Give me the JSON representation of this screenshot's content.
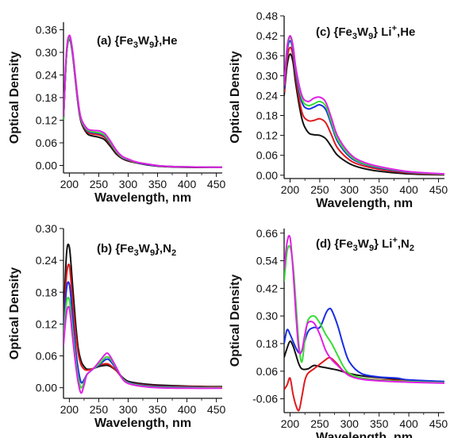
{
  "figure": {
    "colors": {
      "black": "#111111",
      "red": "#e0191d",
      "blue": "#1a2ee6",
      "green": "#35dd35",
      "magenta": "#e020e6"
    }
  },
  "chart_data": [
    {
      "type": "line",
      "panel": "a",
      "title": "(a) {Fe3W9},He",
      "title_parts": {
        "prefix": "(a) {Fe",
        "sub1": "3",
        "mid": "W",
        "sub2": "9",
        "sup": "",
        "suffix": "},He",
        "sub3": ""
      },
      "xlabel": "Wavelength, nm",
      "ylabel": "Optical Density",
      "xlim": [
        190,
        460
      ],
      "ylim": [
        -0.02,
        0.38
      ],
      "xticks": [
        200,
        250,
        300,
        350,
        400,
        450
      ],
      "yticks": [
        "0.00",
        "0.06",
        "0.12",
        "0.18",
        "0.24",
        "0.30",
        "0.36"
      ],
      "series": [
        {
          "color": "black",
          "x": [
            190,
            195,
            200,
            205,
            210,
            215,
            220,
            230,
            240,
            250,
            260,
            270,
            280,
            290,
            300,
            310,
            320,
            340,
            360,
            400,
            460
          ],
          "y": [
            0.12,
            0.29,
            0.335,
            0.3,
            0.23,
            0.16,
            0.115,
            0.085,
            0.078,
            0.075,
            0.068,
            0.05,
            0.03,
            0.018,
            0.012,
            0.008,
            0.005,
            0.0,
            -0.003,
            -0.005,
            -0.005
          ]
        },
        {
          "color": "red",
          "x": [
            190,
            195,
            200,
            205,
            210,
            215,
            220,
            230,
            240,
            250,
            260,
            270,
            280,
            290,
            300,
            310,
            320,
            340,
            360,
            400,
            460
          ],
          "y": [
            0.12,
            0.29,
            0.337,
            0.302,
            0.232,
            0.163,
            0.118,
            0.09,
            0.083,
            0.081,
            0.074,
            0.055,
            0.034,
            0.02,
            0.014,
            0.009,
            0.006,
            0.001,
            -0.002,
            -0.004,
            -0.005
          ]
        },
        {
          "color": "blue",
          "x": [
            190,
            195,
            200,
            205,
            210,
            215,
            220,
            230,
            240,
            250,
            260,
            270,
            280,
            290,
            300,
            310,
            320,
            340,
            360,
            400,
            460
          ],
          "y": [
            0.12,
            0.29,
            0.338,
            0.303,
            0.234,
            0.165,
            0.12,
            0.093,
            0.087,
            0.085,
            0.078,
            0.058,
            0.036,
            0.021,
            0.015,
            0.01,
            0.006,
            0.001,
            -0.002,
            -0.004,
            -0.005
          ]
        },
        {
          "color": "green",
          "x": [
            190,
            195,
            200,
            205,
            210,
            215,
            220,
            230,
            240,
            250,
            260,
            270,
            280,
            290,
            300,
            310,
            320,
            340,
            360,
            400,
            460
          ],
          "y": [
            0.12,
            0.29,
            0.34,
            0.305,
            0.236,
            0.167,
            0.122,
            0.095,
            0.089,
            0.087,
            0.08,
            0.06,
            0.037,
            0.022,
            0.016,
            0.01,
            0.007,
            0.002,
            -0.002,
            -0.004,
            -0.005
          ]
        },
        {
          "color": "magenta",
          "x": [
            190,
            195,
            200,
            205,
            210,
            215,
            220,
            230,
            240,
            250,
            260,
            270,
            280,
            290,
            300,
            310,
            320,
            340,
            360,
            400,
            460
          ],
          "y": [
            0.13,
            0.3,
            0.345,
            0.31,
            0.24,
            0.17,
            0.125,
            0.098,
            0.093,
            0.092,
            0.085,
            0.064,
            0.04,
            0.024,
            0.017,
            0.011,
            0.007,
            0.002,
            -0.002,
            -0.004,
            -0.005
          ]
        }
      ]
    },
    {
      "type": "line",
      "panel": "c",
      "title": "(c) {Fe3W9} Li+,He",
      "title_parts": {
        "prefix": "(c) {Fe",
        "sub1": "3",
        "mid": "W",
        "sub2": "9",
        "suffix": "} Li",
        "sup": "+",
        "suffix2": ",He",
        "sub3": ""
      },
      "xlabel": "Wavelength, nm",
      "ylabel": "Optical Density",
      "xlim": [
        190,
        460
      ],
      "ylim": [
        -0.01,
        0.48
      ],
      "xticks": [
        200,
        250,
        300,
        350,
        400,
        450
      ],
      "yticks": [
        "0.00",
        "0.06",
        "0.12",
        "0.18",
        "0.24",
        "0.30",
        "0.36",
        "0.42",
        "0.48"
      ],
      "series": [
        {
          "color": "black",
          "x": [
            190,
            195,
            200,
            205,
            210,
            220,
            230,
            240,
            250,
            260,
            270,
            280,
            300,
            320,
            350,
            400,
            460
          ],
          "y": [
            0.24,
            0.33,
            0.365,
            0.34,
            0.27,
            0.17,
            0.13,
            0.122,
            0.12,
            0.11,
            0.085,
            0.06,
            0.035,
            0.022,
            0.012,
            0.004,
            0.001
          ]
        },
        {
          "color": "red",
          "x": [
            190,
            195,
            200,
            205,
            210,
            220,
            230,
            240,
            250,
            260,
            270,
            280,
            300,
            320,
            350,
            400,
            460
          ],
          "y": [
            0.25,
            0.35,
            0.385,
            0.36,
            0.29,
            0.19,
            0.165,
            0.165,
            0.17,
            0.158,
            0.12,
            0.082,
            0.046,
            0.03,
            0.018,
            0.007,
            0.002
          ]
        },
        {
          "color": "blue",
          "x": [
            190,
            195,
            200,
            205,
            210,
            220,
            230,
            240,
            250,
            260,
            270,
            280,
            300,
            320,
            350,
            400,
            460
          ],
          "y": [
            0.26,
            0.37,
            0.405,
            0.375,
            0.305,
            0.22,
            0.2,
            0.205,
            0.212,
            0.198,
            0.15,
            0.102,
            0.056,
            0.036,
            0.022,
            0.009,
            0.003
          ]
        },
        {
          "color": "green",
          "x": [
            190,
            195,
            200,
            205,
            210,
            220,
            230,
            240,
            250,
            260,
            270,
            280,
            300,
            320,
            350,
            400,
            460
          ],
          "y": [
            0.27,
            0.38,
            0.415,
            0.385,
            0.315,
            0.23,
            0.21,
            0.215,
            0.222,
            0.208,
            0.158,
            0.108,
            0.06,
            0.038,
            0.024,
            0.01,
            0.003
          ]
        },
        {
          "color": "magenta",
          "x": [
            190,
            195,
            200,
            205,
            210,
            220,
            230,
            240,
            250,
            260,
            270,
            280,
            300,
            320,
            350,
            400,
            460
          ],
          "y": [
            0.27,
            0.385,
            0.42,
            0.39,
            0.32,
            0.24,
            0.222,
            0.232,
            0.235,
            0.22,
            0.17,
            0.118,
            0.066,
            0.042,
            0.026,
            0.011,
            0.004
          ]
        }
      ]
    },
    {
      "type": "line",
      "panel": "b",
      "title": "(b) {Fe3W9},N2",
      "title_parts": {
        "prefix": "(b) {Fe",
        "sub1": "3",
        "mid": "W",
        "sub2": "9",
        "sup": "",
        "suffix": "},N",
        "sub3": "2"
      },
      "xlabel": "Wavelength, nm",
      "ylabel": "Optical Density",
      "xlim": [
        190,
        460
      ],
      "ylim": [
        -0.02,
        0.3
      ],
      "xticks": [
        200,
        250,
        300,
        350,
        400,
        450
      ],
      "yticks": [
        "0.00",
        "0.06",
        "0.12",
        "0.18",
        "0.24",
        "0.30"
      ],
      "series": [
        {
          "color": "black",
          "x": [
            190,
            195,
            200,
            205,
            210,
            215,
            220,
            225,
            230,
            240,
            250,
            260,
            265,
            270,
            280,
            290,
            300,
            320,
            350,
            400,
            460
          ],
          "y": [
            0.12,
            0.25,
            0.265,
            0.2,
            0.13,
            0.075,
            0.05,
            0.04,
            0.035,
            0.036,
            0.04,
            0.042,
            0.042,
            0.04,
            0.032,
            0.02,
            0.012,
            0.008,
            0.005,
            0.003,
            0.002
          ]
        },
        {
          "color": "red",
          "x": [
            190,
            195,
            200,
            205,
            210,
            215,
            220,
            225,
            230,
            240,
            250,
            260,
            265,
            270,
            280,
            290,
            300,
            320,
            350,
            400,
            460
          ],
          "y": [
            0.11,
            0.21,
            0.23,
            0.17,
            0.11,
            0.065,
            0.043,
            0.035,
            0.033,
            0.036,
            0.042,
            0.045,
            0.045,
            0.042,
            0.032,
            0.018,
            0.01,
            0.006,
            0.003,
            0.002,
            0.001
          ]
        },
        {
          "color": "blue",
          "x": [
            190,
            195,
            200,
            205,
            210,
            215,
            220,
            225,
            230,
            240,
            250,
            260,
            265,
            270,
            280,
            290,
            300,
            320,
            350,
            400,
            460
          ],
          "y": [
            0.1,
            0.185,
            0.195,
            0.14,
            0.08,
            0.035,
            0.01,
            0.015,
            0.025,
            0.035,
            0.042,
            0.052,
            0.054,
            0.05,
            0.035,
            0.018,
            0.01,
            0.005,
            0.002,
            0.001,
            0.0
          ]
        },
        {
          "color": "green",
          "x": [
            190,
            195,
            200,
            205,
            210,
            215,
            220,
            225,
            230,
            240,
            250,
            260,
            265,
            270,
            280,
            290,
            300,
            320,
            350,
            400,
            460
          ],
          "y": [
            0.09,
            0.16,
            0.165,
            0.115,
            0.06,
            0.02,
            0.0,
            0.01,
            0.025,
            0.035,
            0.044,
            0.056,
            0.058,
            0.054,
            0.037,
            0.018,
            0.009,
            0.004,
            0.001,
            0.0,
            0.0
          ]
        },
        {
          "color": "magenta",
          "x": [
            190,
            195,
            200,
            205,
            210,
            215,
            220,
            225,
            230,
            240,
            250,
            260,
            265,
            270,
            280,
            290,
            300,
            320,
            350,
            400,
            460
          ],
          "y": [
            0.08,
            0.14,
            0.15,
            0.1,
            0.05,
            0.01,
            -0.01,
            0.005,
            0.025,
            0.035,
            0.048,
            0.062,
            0.065,
            0.058,
            0.038,
            0.017,
            0.008,
            0.003,
            0.0,
            -0.001,
            -0.001
          ]
        }
      ]
    },
    {
      "type": "line",
      "panel": "d",
      "title": "(d) {Fe3W9} Li+,N2",
      "title_parts": {
        "prefix": "(d) {Fe",
        "sub1": "3",
        "mid": "W",
        "sub2": "9",
        "suffix": "} Li",
        "sup": "+",
        "suffix2": ",N",
        "sub3": "2"
      },
      "xlabel": "Wavelength, nm",
      "ylabel": "Optical Density",
      "xlim": [
        190,
        460
      ],
      "ylim": [
        -0.12,
        0.68
      ],
      "xticks": [
        200,
        250,
        300,
        350,
        400,
        450
      ],
      "yticks": [
        "-0.06",
        "0.06",
        "0.18",
        "0.30",
        "0.42",
        "0.54",
        "0.66"
      ],
      "series": [
        {
          "color": "black",
          "x": [
            190,
            195,
            200,
            205,
            210,
            215,
            220,
            230,
            240,
            250,
            260,
            270,
            280,
            300,
            320,
            350,
            380,
            400,
            460
          ],
          "y": [
            0.12,
            0.16,
            0.19,
            0.17,
            0.13,
            0.09,
            0.07,
            0.07,
            0.085,
            0.08,
            0.075,
            0.07,
            0.065,
            0.05,
            0.04,
            0.032,
            0.025,
            0.02,
            0.015
          ]
        },
        {
          "color": "red",
          "x": [
            190,
            195,
            200,
            205,
            210,
            215,
            220,
            225,
            230,
            240,
            250,
            260,
            265,
            270,
            280,
            290,
            300,
            320,
            350,
            400,
            460
          ],
          "y": [
            -0.02,
            0.0,
            0.03,
            -0.04,
            -0.09,
            -0.11,
            -0.05,
            0.02,
            0.05,
            0.07,
            0.09,
            0.11,
            0.118,
            0.115,
            0.09,
            0.06,
            0.045,
            0.03,
            0.022,
            0.018,
            0.012
          ]
        },
        {
          "color": "blue",
          "x": [
            190,
            195,
            200,
            205,
            210,
            215,
            220,
            230,
            240,
            250,
            260,
            265,
            270,
            280,
            290,
            300,
            320,
            350,
            380,
            400,
            460
          ],
          "y": [
            0.18,
            0.24,
            0.22,
            0.19,
            0.16,
            0.14,
            0.15,
            0.23,
            0.25,
            0.25,
            0.31,
            0.33,
            0.325,
            0.26,
            0.17,
            0.1,
            0.05,
            0.035,
            0.03,
            0.022,
            0.015
          ]
        },
        {
          "color": "green",
          "x": [
            190,
            195,
            200,
            205,
            210,
            215,
            220,
            225,
            230,
            240,
            250,
            260,
            270,
            280,
            290,
            300,
            320,
            350,
            400,
            460
          ],
          "y": [
            0.45,
            0.58,
            0.6,
            0.52,
            0.35,
            0.17,
            0.1,
            0.2,
            0.28,
            0.3,
            0.27,
            0.22,
            0.18,
            0.13,
            0.08,
            0.05,
            0.03,
            0.02,
            0.015,
            0.01
          ]
        },
        {
          "color": "magenta",
          "x": [
            190,
            195,
            200,
            205,
            210,
            215,
            220,
            225,
            230,
            240,
            250,
            260,
            270,
            280,
            290,
            300,
            320,
            350,
            400,
            460
          ],
          "y": [
            0.5,
            0.62,
            0.64,
            0.5,
            0.3,
            0.15,
            0.15,
            0.22,
            0.27,
            0.27,
            0.22,
            0.15,
            0.11,
            0.085,
            0.06,
            0.04,
            0.025,
            0.018,
            0.012,
            0.008
          ]
        }
      ]
    }
  ]
}
